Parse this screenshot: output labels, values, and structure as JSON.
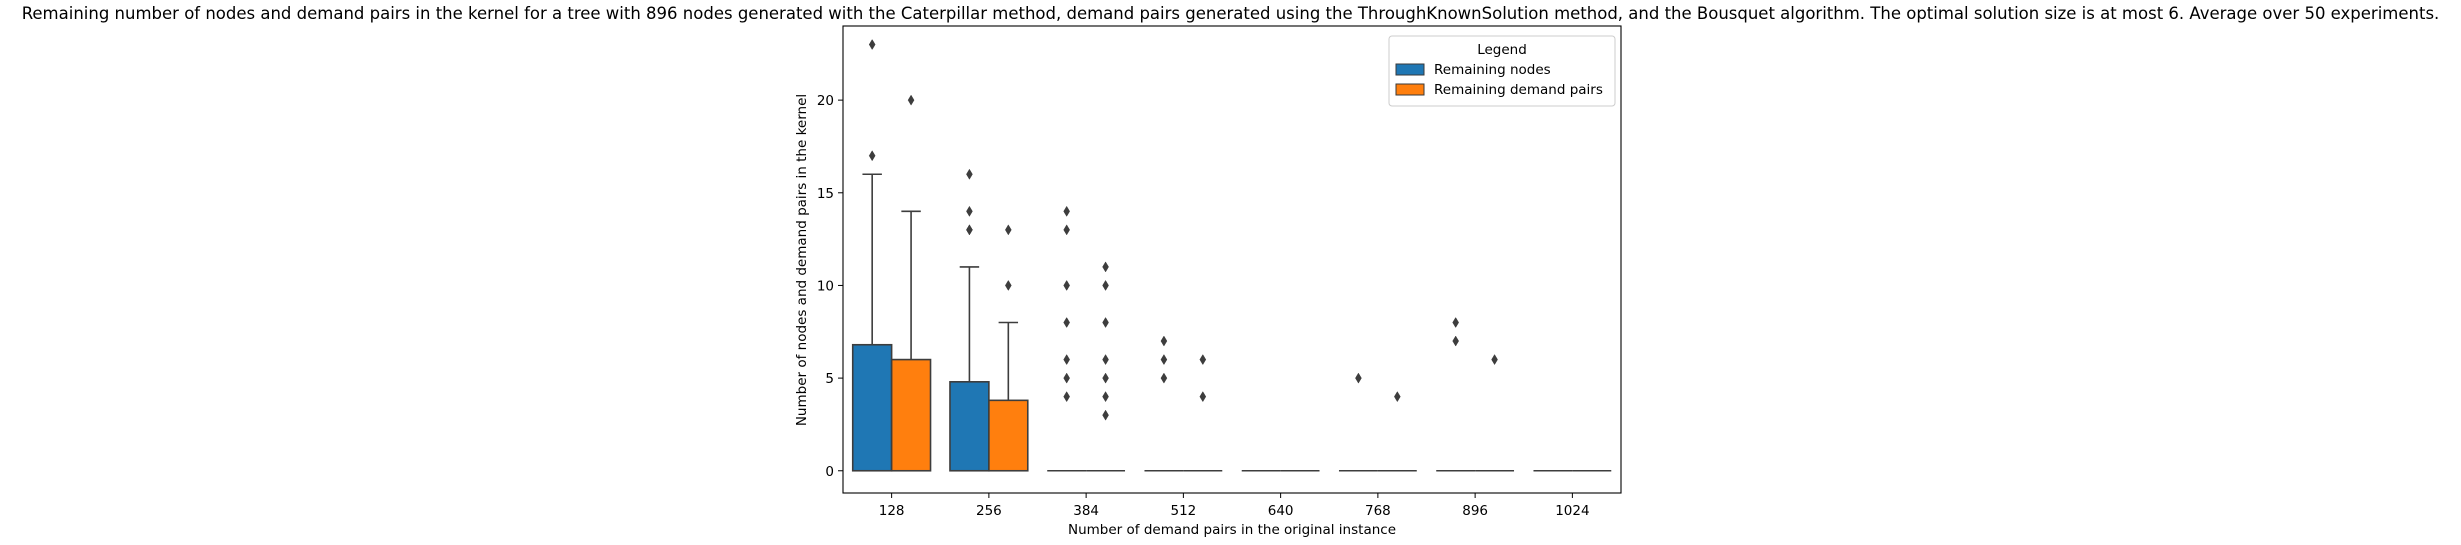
{
  "chart_data": {
    "type": "box",
    "title": "Remaining number of nodes and demand pairs in the kernel for a tree with 896 nodes generated with the Caterpillar method, demand pairs generated using the ThroughKnownSolution method, and the Bousquet algorithm. The optimal solution size is at most 6. Average over 50 experiments.",
    "xlabel": "Number of demand pairs in the original instance",
    "ylabel": "Number of nodes and demand pairs in the kernel",
    "ylim": [
      -1.2,
      24
    ],
    "yticks": [
      0,
      5,
      10,
      15,
      20
    ],
    "categories": [
      "128",
      "256",
      "384",
      "512",
      "640",
      "768",
      "896",
      "1024"
    ],
    "legend": {
      "title": "Legend",
      "position": "top-right"
    },
    "series": [
      {
        "name": "Remaining nodes",
        "color": "#1f77b4",
        "boxes": [
          {
            "q1": 0,
            "median": 0,
            "q3": 6.8,
            "whisker_low": 0,
            "whisker_high": 16,
            "outliers": [
              17,
              23
            ]
          },
          {
            "q1": 0,
            "median": 0,
            "q3": 4.8,
            "whisker_low": 0,
            "whisker_high": 11,
            "outliers": [
              13,
              13,
              14,
              16
            ]
          },
          {
            "q1": 0,
            "median": 0,
            "q3": 0,
            "whisker_low": 0,
            "whisker_high": 0,
            "outliers": [
              4,
              5,
              6,
              8,
              10,
              13,
              14
            ]
          },
          {
            "q1": 0,
            "median": 0,
            "q3": 0,
            "whisker_low": 0,
            "whisker_high": 0,
            "outliers": [
              5,
              6,
              7
            ]
          },
          {
            "q1": 0,
            "median": 0,
            "q3": 0,
            "whisker_low": 0,
            "whisker_high": 0,
            "outliers": []
          },
          {
            "q1": 0,
            "median": 0,
            "q3": 0,
            "whisker_low": 0,
            "whisker_high": 0,
            "outliers": [
              5
            ]
          },
          {
            "q1": 0,
            "median": 0,
            "q3": 0,
            "whisker_low": 0,
            "whisker_high": 0,
            "outliers": [
              7,
              8
            ]
          },
          {
            "q1": 0,
            "median": 0,
            "q3": 0,
            "whisker_low": 0,
            "whisker_high": 0,
            "outliers": []
          }
        ]
      },
      {
        "name": "Remaining demand pairs",
        "color": "#ff7f0e",
        "boxes": [
          {
            "q1": 0,
            "median": 0,
            "q3": 6,
            "whisker_low": 0,
            "whisker_high": 14,
            "outliers": [
              20
            ]
          },
          {
            "q1": 0,
            "median": 0,
            "q3": 3.8,
            "whisker_low": 0,
            "whisker_high": 8,
            "outliers": [
              10,
              13
            ]
          },
          {
            "q1": 0,
            "median": 0,
            "q3": 0,
            "whisker_low": 0,
            "whisker_high": 0,
            "outliers": [
              3,
              4,
              5,
              6,
              8,
              10,
              11
            ]
          },
          {
            "q1": 0,
            "median": 0,
            "q3": 0,
            "whisker_low": 0,
            "whisker_high": 0,
            "outliers": [
              4,
              6
            ]
          },
          {
            "q1": 0,
            "median": 0,
            "q3": 0,
            "whisker_low": 0,
            "whisker_high": 0,
            "outliers": []
          },
          {
            "q1": 0,
            "median": 0,
            "q3": 0,
            "whisker_low": 0,
            "whisker_high": 0,
            "outliers": [
              4
            ]
          },
          {
            "q1": 0,
            "median": 0,
            "q3": 0,
            "whisker_low": 0,
            "whisker_high": 0,
            "outliers": [
              6
            ]
          },
          {
            "q1": 0,
            "median": 0,
            "q3": 0,
            "whisker_low": 0,
            "whisker_high": 0,
            "outliers": []
          }
        ]
      }
    ]
  }
}
